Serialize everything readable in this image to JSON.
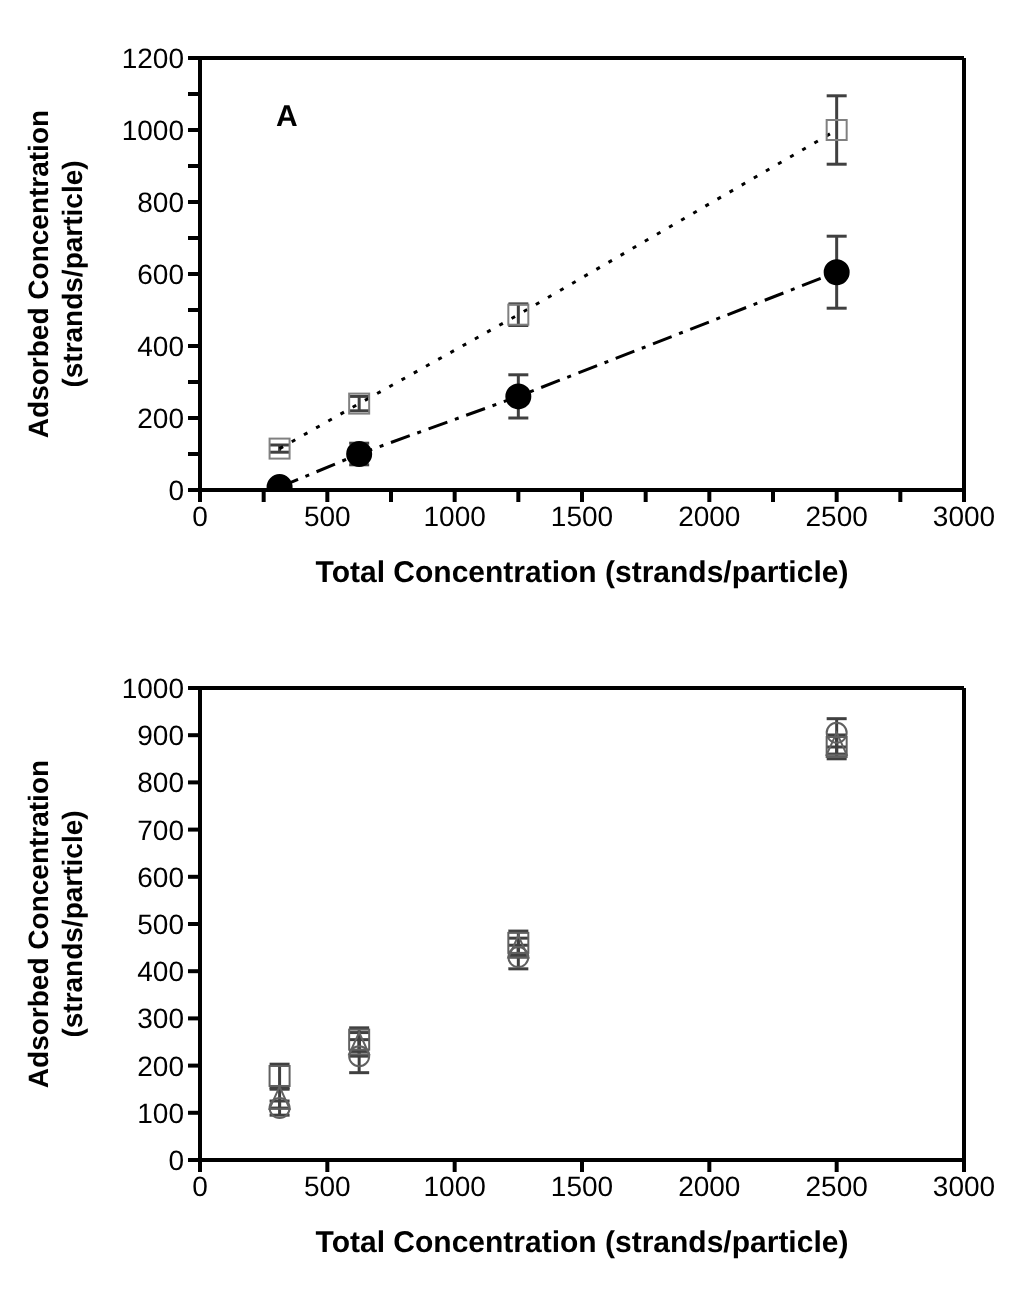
{
  "chart_data": [
    {
      "type": "line",
      "xlabel": "Total Concentration (strands/particle)",
      "ylabel": "Adsorbed Concentration\n(strands/particle)",
      "annotations": [
        "A"
      ],
      "xlim": [
        0,
        3000
      ],
      "xticks": [
        0,
        {
          "value": 250,
          "label": null
        },
        500,
        {
          "value": 750,
          "label": null
        },
        1000,
        {
          "value": 1250,
          "label": null
        },
        1500,
        {
          "value": 1750,
          "label": null
        },
        2000,
        {
          "value": 2250,
          "label": null
        },
        2500,
        {
          "value": 2750,
          "label": null
        },
        3000
      ],
      "ylim": [
        0,
        1200
      ],
      "yticks": [
        0,
        {
          "value": 100,
          "label": null
        },
        200,
        {
          "value": 300,
          "label": null
        },
        400,
        {
          "value": 500,
          "label": null
        },
        600,
        {
          "value": 700,
          "label": null
        },
        800,
        {
          "value": 900,
          "label": null
        },
        1000,
        {
          "value": 1100,
          "label": null
        },
        1200
      ],
      "x": [
        312.5,
        625,
        1250,
        2500
      ],
      "series": [
        {
          "color": "#808080",
          "marker": "square",
          "line_style": "dotted",
          "values": [
            115,
            240,
            487,
            1000
          ],
          "errors": [
            10,
            20,
            30,
            95
          ]
        },
        {
          "color": "#000000",
          "marker": "circle",
          "line_style": "dashed",
          "values": [
            8,
            100,
            260,
            605
          ],
          "errors": [
            5,
            30,
            60,
            100
          ]
        }
      ]
    },
    {
      "type": "scatter",
      "xlabel": "Total Concentration (strands/particle)",
      "ylabel": "Adsorbed Concentration\n(strands/particle)",
      "xlim": [
        0,
        3000
      ],
      "xticks": [
        0,
        500,
        1000,
        1500,
        2000,
        2500,
        3000
      ],
      "ylim": [
        0,
        1000
      ],
      "yticks": [
        0,
        100,
        200,
        300,
        400,
        500,
        600,
        700,
        800,
        900,
        1000
      ],
      "x": [
        312.5,
        625,
        1250,
        2500
      ],
      "series": [
        {
          "color": "#606060",
          "marker": "square",
          "values": [
            178,
            255,
            460,
            875
          ],
          "errors": [
            25,
            25,
            25,
            25
          ]
        },
        {
          "color": "#606060",
          "marker": "triangle",
          "values": [
            130,
            245,
            450,
            880
          ],
          "errors": [
            20,
            25,
            20,
            20
          ]
        },
        {
          "color": "#606060",
          "marker": "circle",
          "values": [
            110,
            220,
            430,
            905
          ],
          "errors": [
            15,
            35,
            25,
            30
          ]
        }
      ]
    }
  ]
}
